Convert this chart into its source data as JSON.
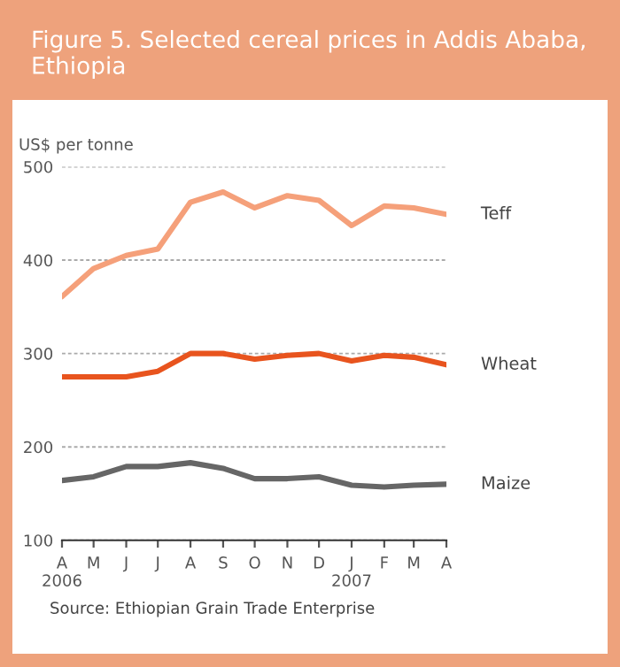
{
  "chart_data": {
    "type": "line",
    "title": "Figure 5. Selected cereal prices in Addis Ababa, Ethiopia",
    "ylabel": "US$ per tonne",
    "x": [
      "2006-04",
      "2006-05",
      "2006-06",
      "2006-07",
      "2006-08",
      "2006-09",
      "2006-10",
      "2006-11",
      "2006-12",
      "2007-01",
      "2007-02",
      "2007-03",
      "2007-04"
    ],
    "series": [
      {
        "name": "Teff",
        "color": "#f5a07a",
        "values": [
          361,
          391,
          405,
          412,
          462,
          473,
          456,
          469,
          464,
          437,
          458,
          456,
          449
        ]
      },
      {
        "name": "Wheat",
        "color": "#e8541e",
        "values": [
          275,
          275,
          275,
          281,
          300,
          300,
          294,
          298,
          300,
          292,
          298,
          296,
          288
        ]
      },
      {
        "name": "Maize",
        "color": "#666666",
        "values": [
          164,
          168,
          179,
          179,
          183,
          177,
          166,
          166,
          168,
          159,
          157,
          159,
          160
        ]
      }
    ],
    "xlim": [
      "2006-04",
      "2007-04"
    ],
    "xticks": [
      {
        "value": "2006-04",
        "label": "A\n2006"
      },
      {
        "value": "2006-05",
        "label": "M"
      },
      {
        "value": "2006-06",
        "label": "J"
      },
      {
        "value": "2006-07",
        "label": "J"
      },
      {
        "value": "2006-08",
        "label": "A"
      },
      {
        "value": "2006-09",
        "label": "S"
      },
      {
        "value": "2006-10",
        "label": "O"
      },
      {
        "value": "2006-11",
        "label": "N"
      },
      {
        "value": "2006-12",
        "label": "D"
      },
      {
        "value": "2007-01",
        "label": "J\n2007"
      },
      {
        "value": "2007-02",
        "label": "F"
      },
      {
        "value": "2007-03",
        "label": "M"
      },
      {
        "value": "2007-04",
        "label": "A"
      }
    ],
    "ylim": [
      100,
      500
    ],
    "yticks": [
      100,
      200,
      300,
      400,
      500
    ],
    "grid": "y",
    "legend": false,
    "marker": "none",
    "line_style": "solid",
    "annotations": [
      "Source: Ethiopian Grain Trade Enterprise"
    ]
  }
}
